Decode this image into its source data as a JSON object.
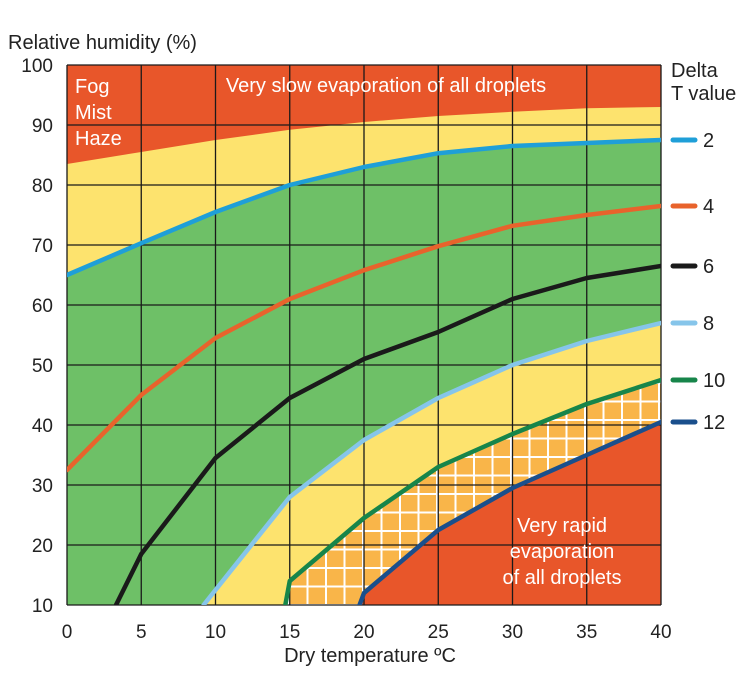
{
  "chart_data": {
    "type": "line",
    "ylabel": "Relative humidity (%)",
    "xlabel": "Dry temperature ºC",
    "legend_title": "Delta\nT value",
    "xlim": [
      0,
      40
    ],
    "ylim": [
      10,
      100
    ],
    "x_ticks": [
      0,
      5,
      10,
      15,
      20,
      25,
      30,
      35,
      40
    ],
    "y_ticks": [
      10,
      20,
      30,
      40,
      50,
      60,
      70,
      80,
      90,
      100
    ],
    "zone_labels": {
      "fog": [
        "Fog",
        "Mist",
        "Haze"
      ],
      "slow": "Very slow evaporation of all droplets",
      "rapid": [
        "Very rapid",
        "evaporation",
        "of all droplets"
      ]
    },
    "fog_boundary": {
      "x": [
        0,
        5,
        10,
        15,
        20,
        25,
        30,
        35,
        40
      ],
      "y": [
        83.5,
        85.5,
        87.5,
        89.2,
        90.5,
        91.5,
        92.2,
        92.8,
        93
      ]
    },
    "series": [
      {
        "name": "2",
        "color": "#1f9fd8",
        "x": [
          0,
          5,
          10,
          15,
          20,
          25,
          30,
          35,
          40
        ],
        "y": [
          65,
          70.3,
          75.5,
          80,
          83,
          85.3,
          86.5,
          87,
          87.5
        ]
      },
      {
        "name": "4",
        "color": "#e8632c",
        "x": [
          0,
          5,
          10,
          15,
          20,
          25,
          30,
          35,
          40
        ],
        "y": [
          32.5,
          45,
          54.5,
          61,
          65.8,
          69.8,
          73.2,
          75,
          76.5
        ]
      },
      {
        "name": "6",
        "color": "#1a1a1a",
        "x": [
          3.3,
          5,
          10,
          15,
          20,
          25,
          30,
          35,
          40
        ],
        "y": [
          10,
          18.5,
          34.5,
          44.5,
          51,
          55.5,
          61,
          64.5,
          66.5
        ]
      },
      {
        "name": "8",
        "color": "#86c5ea",
        "x": [
          9.2,
          10,
          15,
          20,
          25,
          30,
          35,
          40
        ],
        "y": [
          10,
          12.5,
          28,
          37.5,
          44.5,
          50,
          54,
          57
        ]
      },
      {
        "name": "10",
        "color": "#17854a",
        "x": [
          14.7,
          15,
          20,
          25,
          30,
          35,
          40
        ],
        "y": [
          10,
          14,
          24.5,
          33,
          38.5,
          43.5,
          47.5
        ]
      },
      {
        "name": "12",
        "color": "#1a4f8c",
        "x": [
          19.7,
          20,
          25,
          30,
          35,
          40
        ],
        "y": [
          10,
          12,
          22.5,
          29.5,
          35,
          40.5
        ]
      }
    ],
    "colors": {
      "fog_zone": "#e8562a",
      "yellow_zone": "#fde36e",
      "green_zone": "#6ec067",
      "orange_hatch": "#f9b549",
      "rapid_zone": "#e8562a",
      "grid": "#1a1a1a"
    }
  }
}
